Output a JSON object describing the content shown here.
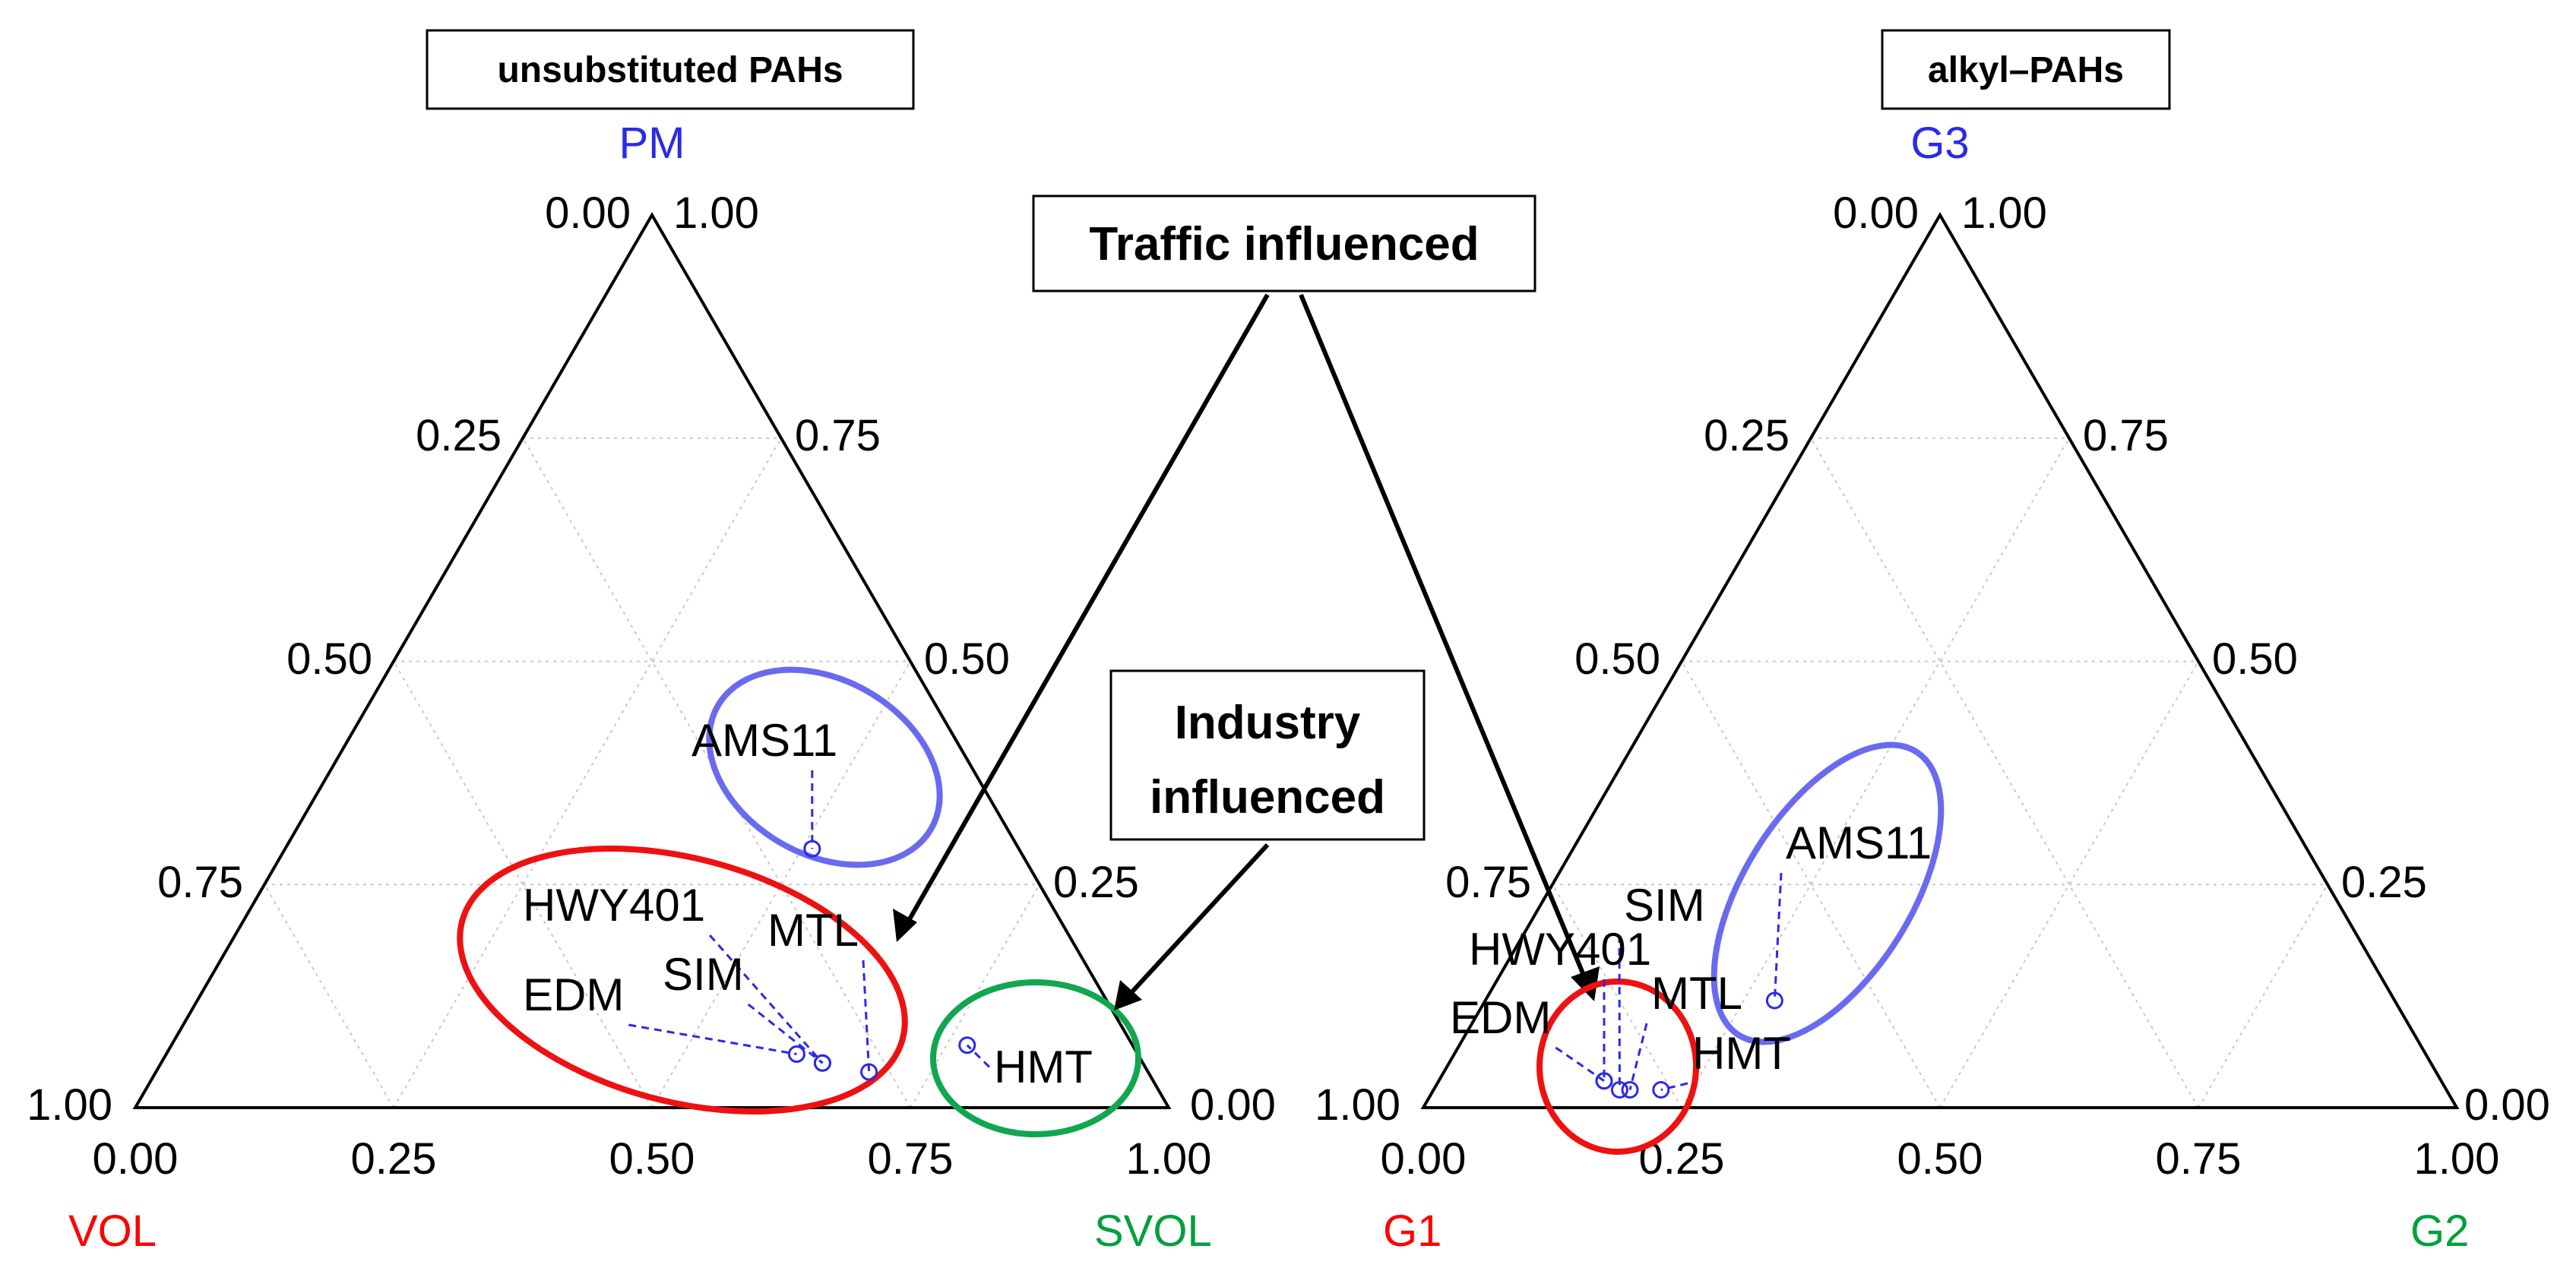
{
  "colors": {
    "frame": "#000000",
    "grid": "#c8c8c8",
    "point": "#2a2ae8",
    "leader": "#2a2ae8",
    "ellipse_blue": "#6a6af0",
    "ellipse_red": "#ee1111",
    "ellipse_green": "#11a650",
    "label_red": "#ff0000",
    "label_green": "#00a03c",
    "label_blue": "#2a2ae8"
  },
  "annotations": {
    "traffic_label": "Traffic influenced",
    "industry_label_line1": "Industry",
    "industry_label_line2": "influenced"
  },
  "chart_data": [
    {
      "type": "ternary scatter",
      "title": "unsubstituted PAHs",
      "axes": {
        "bottom_left": "VOL",
        "bottom_right": "SVOL",
        "top": "PM"
      },
      "bottom_ticks": [
        "0.00",
        "0.25",
        "0.50",
        "0.75",
        "1.00"
      ],
      "left_ticks": [
        "0.00",
        "0.25",
        "0.50",
        "0.75",
        "1.00"
      ],
      "right_ticks": [
        "1.00",
        "0.75",
        "0.50",
        "0.25",
        "0.00"
      ],
      "points": [
        {
          "label": "AMS11",
          "svol": 0.51,
          "pm": 0.29
        },
        {
          "label": "HWY401",
          "svol": 0.64,
          "pm": 0.05
        },
        {
          "label": "EDM",
          "svol": 0.61,
          "pm": 0.06
        },
        {
          "label": "SIM",
          "svol": 0.64,
          "pm": 0.05
        },
        {
          "label": "MTL",
          "svol": 0.69,
          "pm": 0.04
        },
        {
          "label": "HMT",
          "svol": 0.77,
          "pm": 0.07
        }
      ],
      "groups": [
        "AMS11",
        "HWY401, EDM, SIM, MTL",
        "HMT"
      ]
    },
    {
      "type": "ternary scatter",
      "title": "alkyl–PAHs",
      "axes": {
        "bottom_left": "G1",
        "bottom_right": "G2",
        "top": "G3"
      },
      "bottom_ticks": [
        "0.00",
        "0.25",
        "0.50",
        "0.75",
        "1.00"
      ],
      "left_ticks": [
        "0.00",
        "0.25",
        "0.50",
        "0.75",
        "1.00"
      ],
      "right_ticks": [
        "1.00",
        "0.75",
        "0.50",
        "0.25",
        "0.00"
      ],
      "points": [
        {
          "label": "AMS11",
          "g2": 0.28,
          "g3": 0.12
        },
        {
          "label": "EDM",
          "g2": 0.16,
          "g3": 0.03
        },
        {
          "label": "HWY401",
          "g2": 0.16,
          "g3": 0.03
        },
        {
          "label": "SIM",
          "g2": 0.18,
          "g3": 0.02
        },
        {
          "label": "MTL",
          "g2": 0.19,
          "g3": 0.02
        },
        {
          "label": "HMT",
          "g2": 0.22,
          "g3": 0.02
        }
      ],
      "groups": [
        "AMS11",
        "EDM, HWY401, SIM, MTL, HMT"
      ]
    }
  ]
}
